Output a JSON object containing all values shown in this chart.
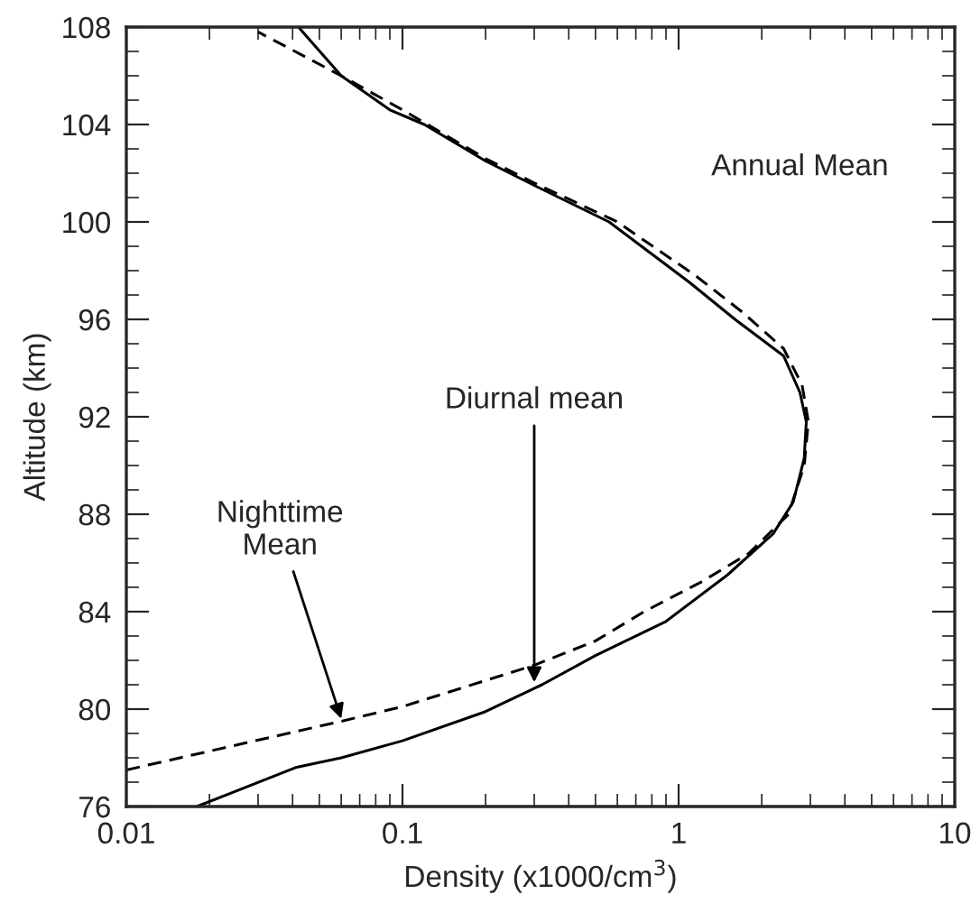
{
  "chart_data": {
    "type": "line",
    "xlabel": "Density (x1000/cm$^{3}$)",
    "ylabel": "Altitude (km)",
    "log": "x",
    "xlim": [
      0.01,
      10
    ],
    "xticks": [
      0.01,
      0.1,
      1,
      10
    ],
    "ylim": [
      76,
      108
    ],
    "yticks": [
      76,
      80,
      84,
      88,
      92,
      96,
      100,
      104,
      108
    ],
    "grid": false,
    "series": [
      {
        "color": "#000000",
        "line_style": "solid",
        "x": [
          0.018,
          0.041,
          0.06,
          0.1,
          0.2,
          0.32,
          0.5,
          0.9,
          1.5,
          2.2,
          2.6,
          2.85,
          2.9,
          2.75,
          2.4,
          1.6,
          1.1,
          0.56,
          0.3,
          0.2,
          0.12,
          0.09,
          0.06,
          0.042
        ],
        "values": [
          76,
          77.6,
          78.0,
          78.7,
          79.9,
          81,
          82.2,
          83.6,
          85.5,
          87.2,
          88.5,
          90.3,
          91.8,
          93,
          94.5,
          96,
          97.5,
          100,
          101.5,
          102.5,
          104,
          104.6,
          106,
          108
        ]
      },
      {
        "color": "#000000",
        "line_style": "dashed",
        "x": [
          0.01,
          0.06,
          0.1,
          0.3,
          0.5,
          0.75,
          1.2,
          1.8,
          2.5,
          2.85,
          2.95,
          2.8,
          2.4,
          1.7,
          1.15,
          0.6,
          0.3,
          0.2,
          0.1,
          0.06,
          0.03
        ],
        "values": [
          77.5,
          79.5,
          80.1,
          81.8,
          82.8,
          84,
          85.2,
          86.4,
          88,
          90,
          91.8,
          93.3,
          94.8,
          96.3,
          97.8,
          100,
          101.6,
          102.6,
          104.6,
          106,
          107.8
        ]
      }
    ],
    "annotations": [
      "Annual Mean",
      {
        "text": "Diurnal mean",
        "x": 0.3,
        "y": 81.1
      },
      {
        "text": "Nighttime\nMean",
        "x": 0.06,
        "y": 79.6
      }
    ]
  }
}
